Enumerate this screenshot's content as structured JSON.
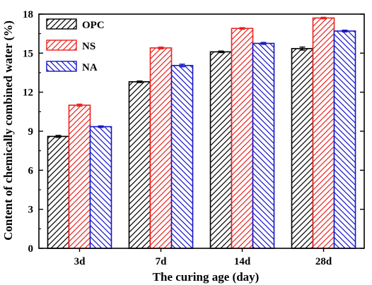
{
  "chart_data": {
    "type": "bar",
    "xlabel": "The curing age (day)",
    "ylabel": "Content of chemically combined water (%)",
    "categories": [
      "3d",
      "7d",
      "14d",
      "28d"
    ],
    "ylim": [
      0,
      18
    ],
    "yticks": [
      "0",
      "3",
      "6",
      "9",
      "12",
      "15",
      "18"
    ],
    "legend_position": "top-left",
    "grid": false,
    "series": [
      {
        "name": "OPC",
        "color": "#000000",
        "hatch": "forward-diagonal",
        "values": [
          8.6,
          12.8,
          15.1,
          15.35
        ],
        "errors": [
          0.08,
          0.06,
          0.06,
          0.12
        ]
      },
      {
        "name": "NS",
        "color": "#e8231f",
        "hatch": "forward-diagonal",
        "values": [
          11.0,
          15.4,
          16.9,
          17.7
        ],
        "errors": [
          0.08,
          0.07,
          0.06,
          0.06
        ]
      },
      {
        "name": "NA",
        "color": "#1515c8",
        "hatch": "backward-diagonal",
        "values": [
          9.35,
          14.05,
          15.75,
          16.7
        ],
        "errors": [
          0.06,
          0.1,
          0.08,
          0.07
        ]
      }
    ]
  }
}
